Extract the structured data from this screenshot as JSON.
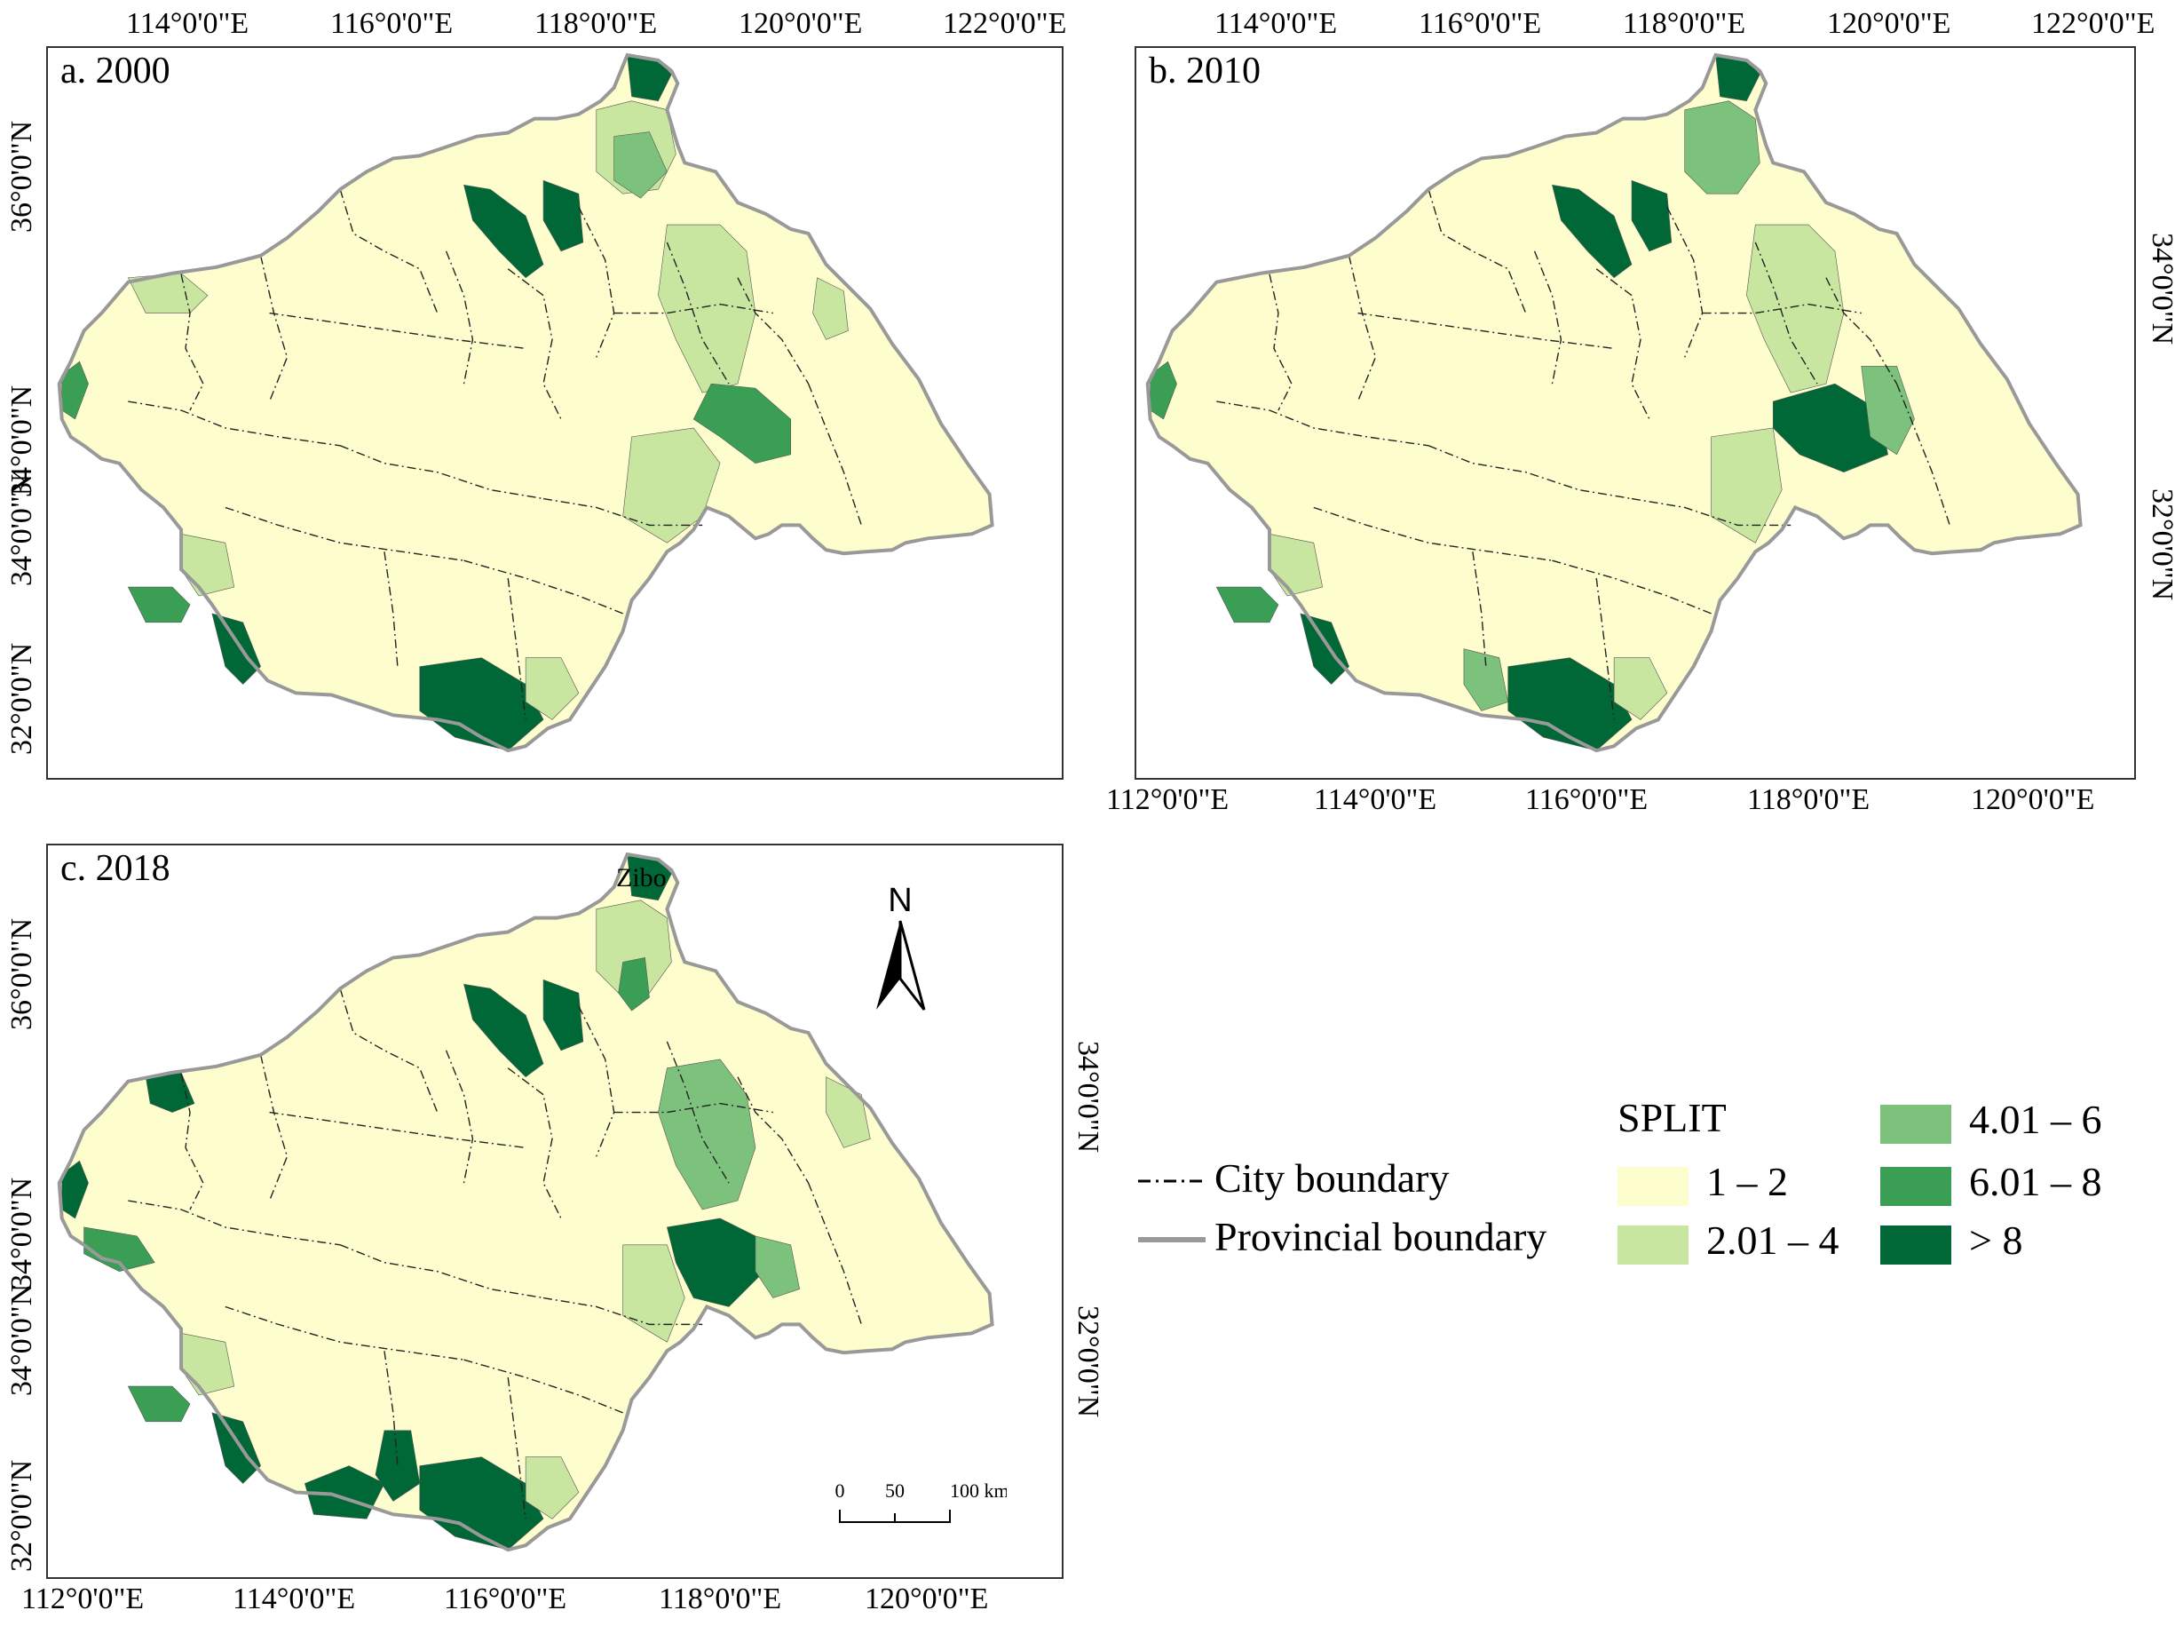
{
  "panels": [
    {
      "label": "a. 2000"
    },
    {
      "label": "b. 2010"
    },
    {
      "label": "c. 2018"
    }
  ],
  "ticks": {
    "a_top": [
      "114°0'0\"E",
      "116°0'0\"E",
      "118°0'0\"E",
      "120°0'0\"E",
      "122°0'0\"E"
    ],
    "a_left": [
      "36°0'0\"N",
      "34°0'0\"N",
      "34°0'0\"N",
      "32°0'0\"N"
    ],
    "b_top": [
      "114°0'0\"E",
      "116°0'0\"E",
      "118°0'0\"E",
      "120°0'0\"E",
      "122°0'0\"E"
    ],
    "b_bottom": [
      "112°0'0\"E",
      "114°0'0\"E",
      "116°0'0\"E",
      "118°0'0\"E",
      "120°0'0\"E"
    ],
    "b_right": [
      "34°0'0\"N",
      "32°0'0\"N"
    ],
    "c_left": [
      "36°0'0\"N",
      "34°0'0\"N",
      "34°0'0\"N",
      "32°0'0\"N"
    ],
    "c_right": [
      "34°0'0\"N",
      "32°0'0\"N"
    ],
    "c_bottom": [
      "112°0'0\"E",
      "114°0'0\"E",
      "116°0'0\"E",
      "118°0'0\"E",
      "120°0'0\"E"
    ]
  },
  "annotations": {
    "city": "Zibo",
    "north": "N"
  },
  "scalebar": {
    "labels": [
      "0",
      "50",
      "100 km"
    ]
  },
  "legend": {
    "title": "SPLIT",
    "city_boundary": "City boundary",
    "provincial_boundary": "Provincial boundary",
    "classes": [
      {
        "label": "1 – 2",
        "color": "#fdfdcd"
      },
      {
        "label": "2.01 – 4",
        "color": "#c8e6a0"
      },
      {
        "label": "4.01 – 6",
        "color": "#7cc17c"
      },
      {
        "label": "6.01 – 8",
        "color": "#3a9f55"
      },
      {
        "label": "> 8",
        "color": "#006837"
      }
    ]
  },
  "colors": {
    "base": "#fdfdcd",
    "light": "#c8e6a0",
    "mid": "#7cc17c",
    "dark": "#3a9f55",
    "darkest": "#006837",
    "province_border": "#999999"
  }
}
